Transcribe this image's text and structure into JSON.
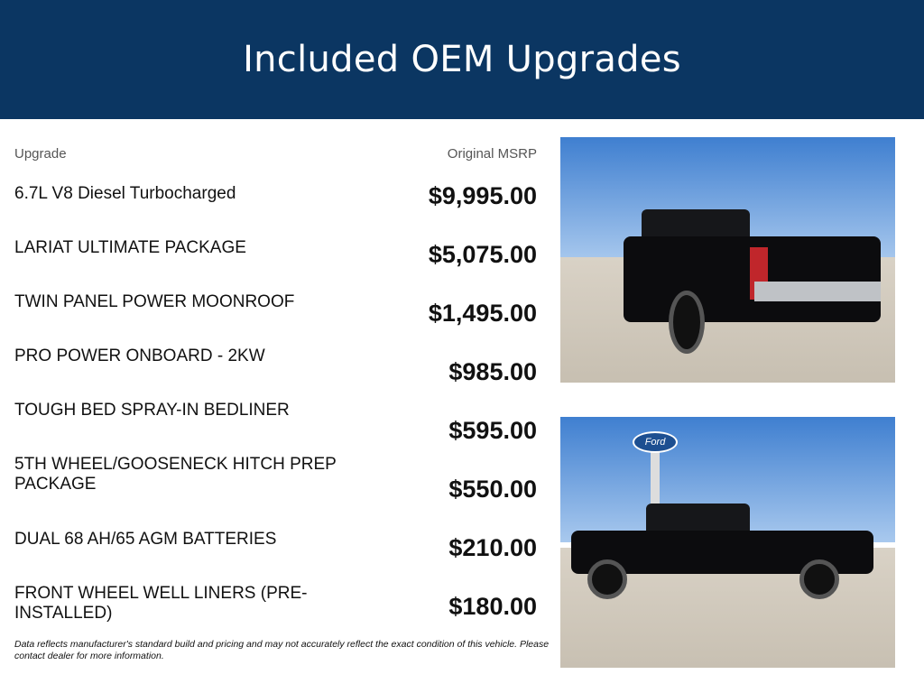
{
  "header": {
    "title": "Included OEM Upgrades"
  },
  "table": {
    "col_upgrade": "Upgrade",
    "col_msrp": "Original MSRP",
    "rows": [
      {
        "name": "6.7L V8 Diesel Turbocharged",
        "price": "$9,995.00"
      },
      {
        "name": "LARIAT ULTIMATE PACKAGE",
        "price": "$5,075.00"
      },
      {
        "name": "TWIN PANEL POWER MOONROOF",
        "price": "$1,495.00"
      },
      {
        "name": "PRO POWER ONBOARD - 2KW",
        "price": "$985.00"
      },
      {
        "name": "TOUGH BED SPRAY-IN BEDLINER",
        "price": "$595.00"
      },
      {
        "name": "5TH WHEEL/GOOSENECK HITCH PREP PACKAGE",
        "price": "$550.00"
      },
      {
        "name": "DUAL 68 AH/65 AGM BATTERIES",
        "price": "$210.00"
      },
      {
        "name": "FRONT WHEEL WELL LINERS (PRE-INSTALLED)",
        "price": "$180.00"
      }
    ]
  },
  "disclaimer": "Data reflects manufacturer's standard build and pricing and may not accurately reflect the exact condition of this vehicle. Please contact dealer for more information.",
  "photos": {
    "sign_text": "Ford"
  },
  "colors": {
    "header_bg": "#0b3662"
  }
}
